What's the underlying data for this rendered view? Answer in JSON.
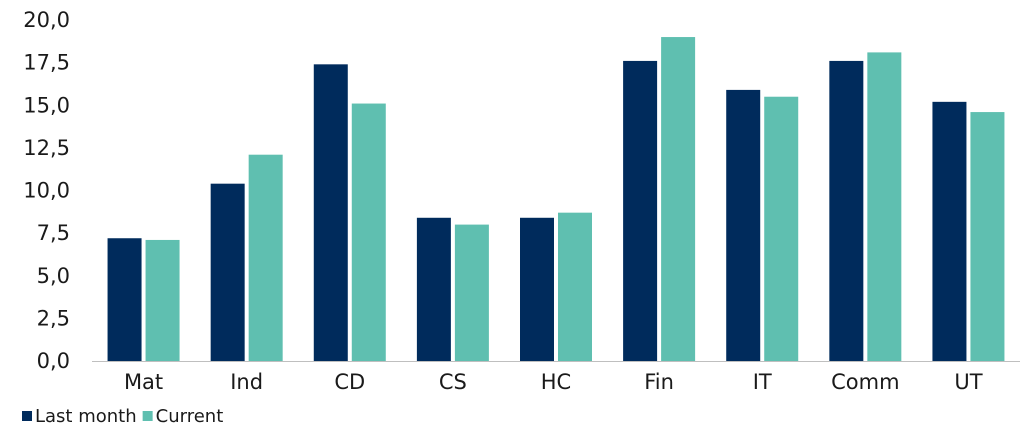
{
  "chart_data": {
    "type": "bar",
    "categories": [
      "Mat",
      "Ind",
      "CD",
      "CS",
      "HC",
      "Fin",
      "IT",
      "Comm",
      "UT"
    ],
    "series": [
      {
        "name": "Last month",
        "color": "#002b5c",
        "values": [
          7.2,
          10.4,
          17.4,
          8.4,
          8.4,
          17.6,
          15.9,
          17.6,
          15.2
        ]
      },
      {
        "name": "Current",
        "color": "#5fbfb0",
        "values": [
          7.1,
          12.1,
          15.1,
          8.0,
          8.7,
          19.0,
          15.5,
          18.1,
          14.6
        ]
      }
    ],
    "ylim": [
      0,
      20
    ],
    "yticks": [
      "0,0",
      "2,5",
      "5,0",
      "7,5",
      "10,0",
      "12,5",
      "15,0",
      "17,5",
      "20,0"
    ],
    "legend_position": "bottom-left",
    "grid": false
  }
}
